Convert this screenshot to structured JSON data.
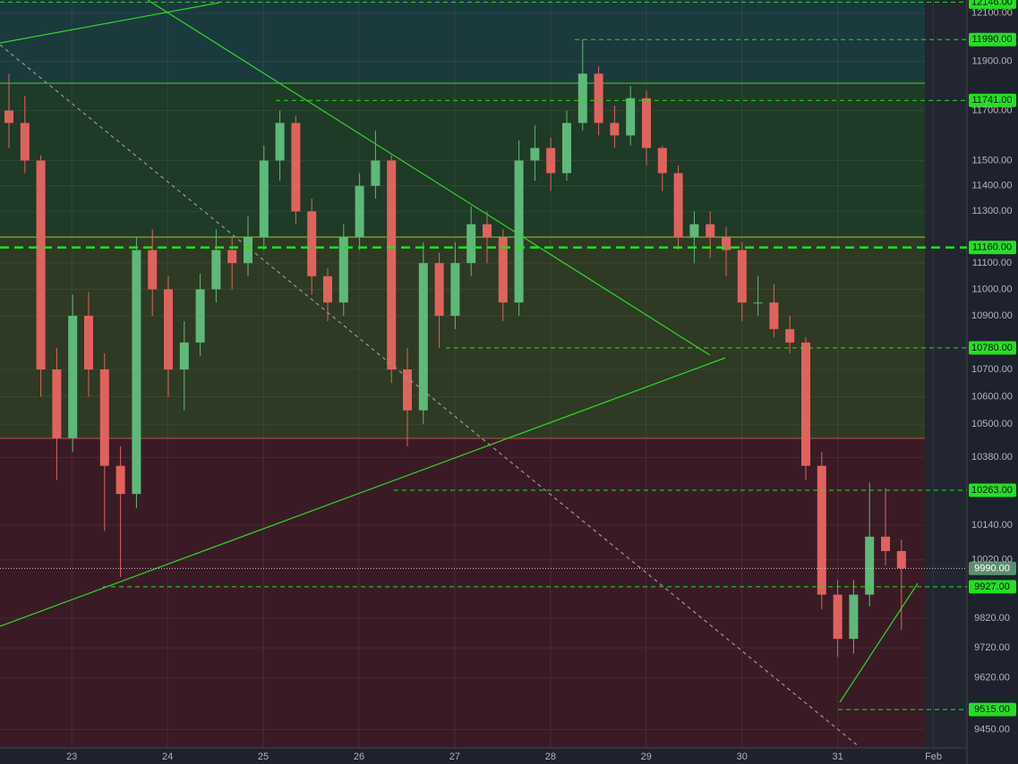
{
  "chart_data": {
    "type": "candlestick",
    "log_scale": true,
    "grid": true,
    "up_color": "#5fb87a",
    "down_color": "#e0625e",
    "level_color": "#22e022",
    "ylim": [
      9390,
      12155
    ],
    "yticks": [
      {
        "value": 12100,
        "label": "12100.00"
      },
      {
        "value": 11900,
        "label": "11900.00"
      },
      {
        "value": 11700,
        "label": "11700.00"
      },
      {
        "value": 11500,
        "label": "11500.00"
      },
      {
        "value": 11400,
        "label": "11400.00"
      },
      {
        "value": 11300,
        "label": "11300.00"
      },
      {
        "value": 11100,
        "label": "11100.00"
      },
      {
        "value": 11000,
        "label": "11000.00"
      },
      {
        "value": 10900,
        "label": "10900.00"
      },
      {
        "value": 10700,
        "label": "10700.00"
      },
      {
        "value": 10600,
        "label": "10600.00"
      },
      {
        "value": 10500,
        "label": "10500.00"
      },
      {
        "value": 10380,
        "label": "10380.00"
      },
      {
        "value": 10140,
        "label": "10140.00"
      },
      {
        "value": 10020,
        "label": "10020.00"
      },
      {
        "value": 9820,
        "label": "9820.00"
      },
      {
        "value": 9720,
        "label": "9720.00"
      },
      {
        "value": 9620,
        "label": "9620.00"
      },
      {
        "value": 9450,
        "label": "9450.00"
      }
    ],
    "xlim": [
      22.25,
      32.35
    ],
    "xticks": [
      23,
      24,
      25,
      26,
      27,
      28,
      29,
      30,
      31,
      {
        "value": 32,
        "label": "Feb"
      }
    ],
    "levels": [
      {
        "value": 12146,
        "label": "12146.00"
      },
      {
        "value": 11990,
        "label": "11990.00"
      },
      {
        "value": 11741,
        "label": "11741.00"
      },
      {
        "value": 11160,
        "label": "11160.00"
      },
      {
        "value": 10780,
        "label": "10780.00"
      },
      {
        "value": 10263,
        "label": "10263.00"
      },
      {
        "value": 9927,
        "label": "9927.00"
      },
      {
        "value": 9515,
        "label": "9515.00"
      }
    ],
    "current": {
      "value": 9990,
      "label": "9990.00"
    },
    "ohlc": [
      [
        11700,
        11850,
        11550,
        11650
      ],
      [
        11650,
        11760,
        11450,
        11500
      ],
      [
        11500,
        11520,
        10600,
        10700
      ],
      [
        10700,
        10780,
        10300,
        10450
      ],
      [
        10450,
        10980,
        10400,
        10900
      ],
      [
        10900,
        10990,
        10600,
        10700
      ],
      [
        10700,
        10760,
        10120,
        10350
      ],
      [
        10350,
        10420,
        9960,
        10250
      ],
      [
        10250,
        11200,
        10200,
        11150
      ],
      [
        11150,
        11230,
        10900,
        11000
      ],
      [
        11000,
        11050,
        10600,
        10700
      ],
      [
        10700,
        10880,
        10550,
        10800
      ],
      [
        10800,
        11060,
        10750,
        11000
      ],
      [
        11000,
        11230,
        10950,
        11150
      ],
      [
        11150,
        11200,
        11000,
        11100
      ],
      [
        11100,
        11280,
        11050,
        11200
      ],
      [
        11200,
        11560,
        11150,
        11500
      ],
      [
        11500,
        11700,
        11420,
        11650
      ],
      [
        11650,
        11680,
        11250,
        11300
      ],
      [
        11300,
        11350,
        10980,
        11050
      ],
      [
        11050,
        11080,
        10880,
        10950
      ],
      [
        10950,
        11250,
        10900,
        11200
      ],
      [
        11200,
        11450,
        11150,
        11400
      ],
      [
        11400,
        11620,
        11350,
        11500
      ],
      [
        11500,
        11520,
        10650,
        10700
      ],
      [
        10700,
        10780,
        10420,
        10550
      ],
      [
        10550,
        11180,
        10500,
        11100
      ],
      [
        11100,
        11140,
        10780,
        10900
      ],
      [
        10900,
        11180,
        10850,
        11100
      ],
      [
        11100,
        11320,
        11050,
        11250
      ],
      [
        11250,
        11300,
        11100,
        11200
      ],
      [
        11200,
        11230,
        10880,
        10950
      ],
      [
        10950,
        11580,
        10900,
        11500
      ],
      [
        11500,
        11640,
        11420,
        11550
      ],
      [
        11550,
        11590,
        11380,
        11450
      ],
      [
        11450,
        11700,
        11420,
        11650
      ],
      [
        11650,
        11990,
        11620,
        11850
      ],
      [
        11850,
        11880,
        11600,
        11650
      ],
      [
        11650,
        11720,
        11550,
        11600
      ],
      [
        11600,
        11800,
        11560,
        11750
      ],
      [
        11750,
        11780,
        11480,
        11550
      ],
      [
        11550,
        11560,
        11380,
        11450
      ],
      [
        11450,
        11480,
        11150,
        11200
      ],
      [
        11200,
        11300,
        11100,
        11250
      ],
      [
        11250,
        11300,
        11120,
        11200
      ],
      [
        11200,
        11240,
        11050,
        11150
      ],
      [
        11150,
        11180,
        10880,
        10950
      ],
      [
        10950,
        11050,
        10900,
        10950
      ],
      [
        10950,
        11020,
        10820,
        10850
      ],
      [
        10850,
        10900,
        10760,
        10800
      ],
      [
        10800,
        10820,
        10300,
        10350
      ],
      [
        10350,
        10400,
        9850,
        9900
      ],
      [
        9900,
        9950,
        9690,
        9750
      ],
      [
        9750,
        9950,
        9700,
        9900
      ],
      [
        9900,
        10290,
        9860,
        10100
      ],
      [
        10100,
        10270,
        10000,
        10050
      ],
      [
        10050,
        10090,
        9780,
        9990
      ]
    ]
  }
}
